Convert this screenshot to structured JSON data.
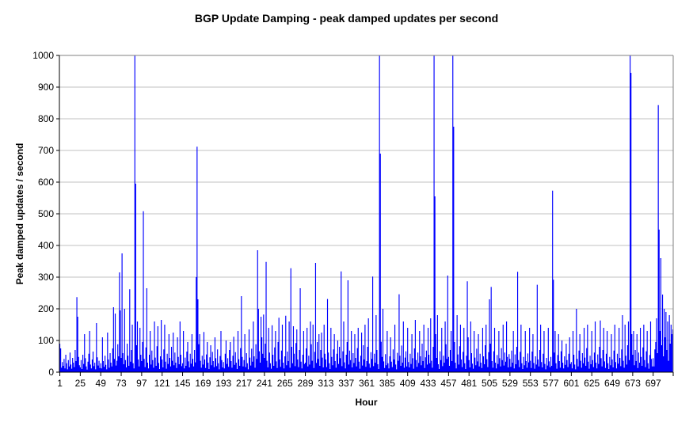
{
  "chart_data": {
    "type": "bar",
    "title": "BGP Update Damping - peak damped updates per second",
    "xlabel": "Hour",
    "ylabel": "Peak damped updates / second",
    "x_start": 1,
    "x_tick_interval": 24,
    "x_tick_labels": [
      1,
      25,
      49,
      73,
      97,
      121,
      145,
      169,
      193,
      217,
      241,
      265,
      289,
      313,
      337,
      361,
      385,
      409,
      433,
      457,
      481,
      505,
      529,
      553,
      577,
      601,
      625,
      649,
      673,
      697
    ],
    "ylim": [
      0,
      1000
    ],
    "y_tick_interval": 100,
    "grid": "horizontal",
    "legend": "none",
    "series_color": "#0000ff",
    "gridline_color": "#c0c0c0",
    "frame_color": "#808080",
    "axis_color": "#000000",
    "values": [
      90,
      75,
      14,
      32,
      20,
      42,
      12,
      55,
      28,
      9,
      38,
      18,
      62,
      24,
      11,
      45,
      30,
      16,
      70,
      35,
      237,
      175,
      48,
      22,
      15,
      38,
      10,
      55,
      26,
      120,
      44,
      18,
      8,
      33,
      58,
      130,
      24,
      12,
      40,
      65,
      19,
      30,
      9,
      155,
      47,
      21,
      36,
      13,
      28,
      12,
      110,
      35,
      17,
      52,
      23,
      9,
      125,
      40,
      14,
      60,
      30,
      18,
      75,
      205,
      42,
      185,
      21,
      36,
      88,
      50,
      315,
      195,
      45,
      375,
      60,
      25,
      200,
      38,
      15,
      90,
      52,
      20,
      262,
      33,
      70,
      150,
      28,
      12,
      1000,
      595,
      85,
      160,
      40,
      18,
      140,
      55,
      35,
      95,
      508,
      42,
      16,
      78,
      265,
      30,
      12,
      55,
      130,
      24,
      68,
      38,
      14,
      160,
      46,
      20,
      82,
      145,
      29,
      10,
      50,
      165,
      40,
      15,
      72,
      150,
      33,
      11,
      58,
      26,
      120,
      45,
      18,
      80,
      36,
      125,
      22,
      62,
      30,
      13,
      110,
      48,
      25,
      160,
      55,
      19,
      28,
      130,
      12,
      46,
      20,
      65,
      95,
      34,
      15,
      58,
      27,
      120,
      42,
      18,
      70,
      31,
      300,
      712,
      230,
      88,
      120,
      36,
      14,
      52,
      24,
      127,
      40,
      13,
      56,
      95,
      30,
      10,
      47,
      85,
      22,
      64,
      35,
      16,
      110,
      44,
      19,
      72,
      28,
      9,
      51,
      130,
      38,
      15,
      32,
      12,
      58,
      100,
      26,
      44,
      17,
      70,
      95,
      35,
      14,
      52,
      112,
      23,
      63,
      30,
      10,
      130,
      41,
      20,
      76,
      240,
      48,
      18,
      38,
      120,
      16,
      60,
      28,
      9,
      135,
      46,
      21,
      74,
      33,
      160,
      50,
      14,
      88,
      42,
      385,
      200,
      66,
      30,
      175,
      110,
      58,
      182,
      45,
      90,
      348,
      36,
      15,
      140,
      62,
      28,
      11,
      148,
      55,
      20,
      78,
      130,
      34,
      13,
      95,
      172,
      40,
      17,
      68,
      150,
      30,
      12,
      50,
      178,
      22,
      65,
      35,
      160,
      14,
      328,
      80,
      28,
      145,
      58,
      19,
      92,
      135,
      40,
      16,
      70,
      265,
      33,
      12,
      55,
      130,
      26,
      30,
      75,
      140,
      18,
      52,
      24,
      160,
      88,
      36,
      150,
      13,
      64,
      345,
      29,
      95,
      42,
      120,
      20,
      70,
      125,
      46,
      15,
      150,
      58,
      40,
      16,
      231,
      62,
      28,
      10,
      140,
      48,
      22,
      72,
      120,
      35,
      14,
      58,
      100,
      26,
      80,
      44,
      318,
      19,
      66,
      160,
      31,
      12,
      55,
      95,
      290,
      24,
      68,
      38,
      130,
      15,
      60,
      29,
      120,
      45,
      18,
      76,
      140,
      33,
      11,
      52,
      125,
      21,
      85,
      40,
      150,
      17,
      35,
      80,
      170,
      27,
      14,
      63,
      42,
      302,
      19,
      58,
      30,
      180,
      70,
      25,
      10,
      1000,
      690,
      96,
      48,
      200,
      34,
      13,
      57,
      22,
      130,
      28,
      12,
      50,
      110,
      33,
      16,
      72,
      40,
      150,
      24,
      9,
      61,
      36,
      246,
      52,
      20,
      84,
      30,
      160,
      14,
      46,
      66,
      18,
      140,
      32,
      15,
      58,
      26,
      120,
      44,
      11,
      75,
      165,
      38,
      17,
      62,
      29,
      130,
      50,
      22,
      90,
      35,
      150,
      13,
      47,
      68,
      24,
      140,
      55,
      28,
      170,
      36,
      14,
      80,
      1000,
      555,
      120,
      45,
      180,
      25,
      10,
      66,
      38,
      140,
      19,
      52,
      30,
      160,
      88,
      42,
      305,
      48,
      20,
      70,
      130,
      35,
      1000,
      775,
      95,
      30,
      12,
      180,
      56,
      24,
      82,
      150,
      40,
      16,
      64,
      140,
      28,
      10,
      52,
      287,
      110,
      38,
      15,
      160,
      60,
      27,
      11,
      130,
      46,
      22,
      74,
      34,
      120,
      18,
      58,
      30,
      13,
      140,
      50,
      25,
      85,
      150,
      41,
      16,
      63,
      230,
      90,
      269,
      35,
      14,
      66,
      140,
      30,
      12,
      54,
      26,
      130,
      44,
      18,
      76,
      38,
      150,
      21,
      62,
      33,
      160,
      48,
      15,
      57,
      42,
      17,
      68,
      30,
      130,
      12,
      56,
      25,
      80,
      317,
      38,
      16,
      64,
      150,
      28,
      10,
      48,
      22,
      130,
      35,
      14,
      59,
      31,
      140,
      36,
      13,
      65,
      120,
      29,
      11,
      50,
      24,
      276,
      40,
      18,
      70,
      150,
      32,
      15,
      58,
      130,
      26,
      9,
      45,
      21,
      140,
      34,
      16,
      48,
      20,
      573,
      292,
      62,
      130,
      28,
      11,
      54,
      120,
      35,
      14,
      66,
      100,
      30,
      12,
      50,
      23,
      90,
      38,
      16,
      58,
      110,
      26,
      32,
      12,
      130,
      55,
      24,
      9,
      200,
      42,
      18,
      68,
      120,
      36,
      14,
      60,
      28,
      140,
      46,
      20,
      76,
      150,
      33,
      11,
      52,
      25,
      130,
      38,
      16,
      62,
      160,
      30,
      12,
      56,
      26,
      80,
      163,
      44,
      18,
      70,
      140,
      34,
      13,
      58,
      130,
      28,
      10,
      48,
      22,
      120,
      40,
      15,
      68,
      150,
      32,
      12,
      58,
      27,
      140,
      45,
      19,
      72,
      180,
      36,
      14,
      150,
      52,
      24,
      85,
      160,
      38,
      1000,
      945,
      120,
      55,
      130,
      22,
      70,
      35,
      120,
      13,
      62,
      30,
      140,
      48,
      20,
      78,
      150,
      38,
      16,
      66,
      130,
      28,
      11,
      54,
      160,
      42,
      18,
      44,
      18,
      72,
      95,
      170,
      60,
      843,
      450,
      130,
      360,
      85,
      245,
      50,
      200,
      110,
      190,
      70,
      160,
      36,
      180,
      90,
      150,
      120,
      135
    ]
  }
}
